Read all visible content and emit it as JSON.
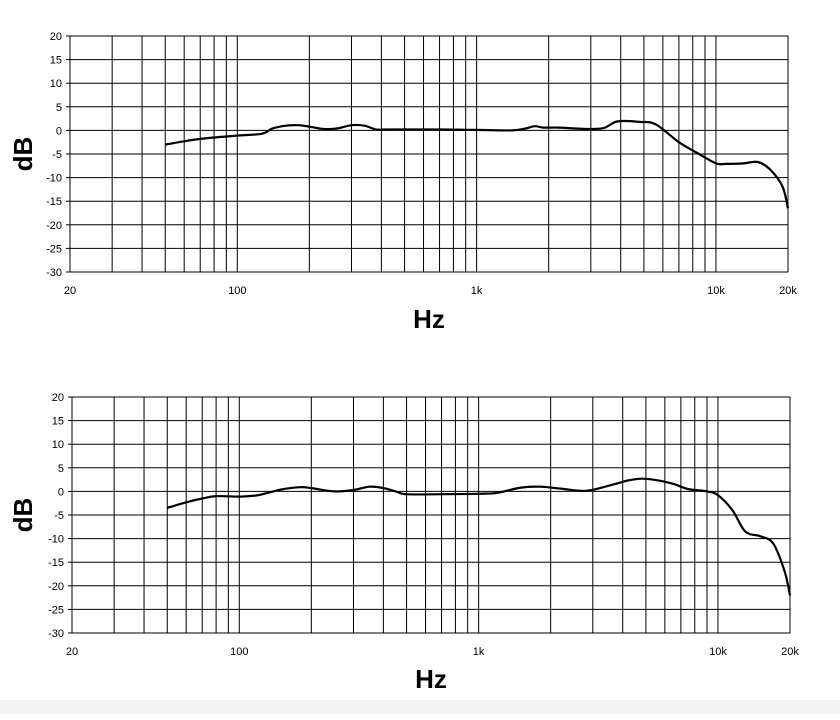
{
  "chart_data": [
    {
      "type": "line",
      "xscale": "log",
      "xlabel": "Hz",
      "ylabel": "dB",
      "xlim": [
        20,
        20000
      ],
      "ylim": [
        -30,
        20
      ],
      "x_tick_labels": [
        {
          "value": 20,
          "label": "20"
        },
        {
          "value": 100,
          "label": "100"
        },
        {
          "value": 1000,
          "label": "1k"
        },
        {
          "value": 10000,
          "label": "10k"
        },
        {
          "value": 20000,
          "label": "20k"
        }
      ],
      "y_ticks": [
        20,
        15,
        10,
        5,
        0,
        -5,
        -10,
        -15,
        -20,
        -25,
        -30
      ],
      "grid": true,
      "series": [
        {
          "x": [
            50,
            60,
            70,
            80,
            100,
            127,
            140,
            160,
            180,
            200,
            230,
            260,
            300,
            340,
            380,
            420,
            500,
            700,
            1000,
            1400,
            1600,
            1750,
            1900,
            2200,
            2600,
            3000,
            3400,
            3800,
            4200,
            4800,
            5600,
            7000,
            8500,
            10000,
            11000,
            13000,
            15000,
            17000,
            19000,
            20000
          ],
          "y": [
            -3,
            -2.3,
            -1.8,
            -1.5,
            -1.1,
            -0.7,
            0.4,
            1.0,
            1.1,
            0.8,
            0.3,
            0.4,
            1.1,
            1.0,
            0.2,
            0.2,
            0.2,
            0.2,
            0.1,
            0.0,
            0.4,
            0.9,
            0.6,
            0.6,
            0.4,
            0.3,
            0.5,
            1.8,
            2.0,
            1.8,
            1.3,
            -2.5,
            -5.0,
            -7.0,
            -7.1,
            -7.0,
            -6.7,
            -8.5,
            -12.0,
            -16.5
          ]
        }
      ]
    },
    {
      "type": "line",
      "xscale": "log",
      "xlabel": "Hz",
      "ylabel": "dB",
      "xlim": [
        20,
        20000
      ],
      "ylim": [
        -30,
        20
      ],
      "x_tick_labels": [
        {
          "value": 20,
          "label": "20"
        },
        {
          "value": 100,
          "label": "100"
        },
        {
          "value": 1000,
          "label": "1k"
        },
        {
          "value": 10000,
          "label": "10k"
        },
        {
          "value": 20000,
          "label": "20k"
        }
      ],
      "y_ticks": [
        20,
        15,
        10,
        5,
        0,
        -5,
        -10,
        -15,
        -20,
        -25,
        -30
      ],
      "grid": true,
      "series": [
        {
          "x": [
            50,
            60,
            70,
            80,
            100,
            120,
            150,
            180,
            200,
            250,
            300,
            350,
            400,
            450,
            500,
            700,
            1000,
            1200,
            1500,
            1800,
            2200,
            2800,
            3500,
            4200,
            4800,
            5500,
            6500,
            7500,
            9000,
            10000,
            11500,
            13000,
            15000,
            17000,
            19000,
            20000
          ],
          "y": [
            -3.5,
            -2.3,
            -1.5,
            -1.0,
            -1.1,
            -0.8,
            0.4,
            0.9,
            0.7,
            0.0,
            0.3,
            1.0,
            0.7,
            0.0,
            -0.6,
            -0.6,
            -0.5,
            -0.3,
            0.8,
            1.0,
            0.6,
            0.1,
            1.2,
            2.3,
            2.7,
            2.4,
            1.6,
            0.5,
            0.0,
            -0.8,
            -4.0,
            -8.5,
            -9.5,
            -11.0,
            -17.0,
            -22.0
          ]
        }
      ]
    }
  ]
}
